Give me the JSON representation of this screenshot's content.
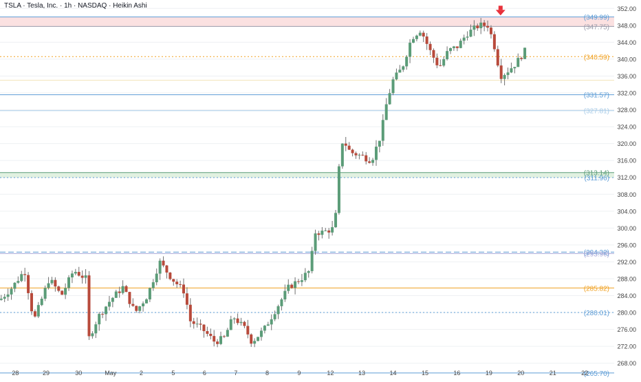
{
  "header": {
    "title": "TSLA · Tesla, Inc. · 1h · NASDAQ · Heikin Ashi"
  },
  "colors": {
    "up": "#5b9c78",
    "down": "#b84a3b",
    "wick": "#6f6f6f",
    "grid": "#eef0f3",
    "axis_text": "#444444",
    "level_blue": "#5b9bd5",
    "level_orange": "#f0a020",
    "arrow": "#e8313b",
    "supply_zone": "#fadcdc",
    "demand_zone": "#dcefdc"
  },
  "chart_data": {
    "type": "candlestick",
    "style": "Heikin Ashi",
    "ylim": [
      266,
      354
    ],
    "xlim": [
      0,
      100
    ],
    "y_ticks": [
      "352.00",
      "348.00",
      "344.00",
      "340.00",
      "336.00",
      "332.00",
      "328.00",
      "324.00",
      "320.00",
      "316.00",
      "312.00",
      "308.00",
      "304.00",
      "300.00",
      "296.00",
      "292.00",
      "288.00",
      "284.00",
      "280.00",
      "276.00",
      "272.00",
      "268.00"
    ],
    "y_tick_values": [
      352,
      348,
      344,
      340,
      336,
      332,
      328,
      324,
      320,
      316,
      312,
      308,
      304,
      300,
      296,
      292,
      288,
      284,
      280,
      276,
      272,
      268
    ],
    "x_ticks": [
      "28",
      "29",
      "30",
      "May",
      "2",
      "5",
      "6",
      "7",
      "8",
      "9",
      "12",
      "13",
      "14",
      "15",
      "16",
      "19",
      "20",
      "21",
      "22"
    ],
    "x_tick_positions": [
      2.5,
      7.5,
      12.8,
      18,
      23,
      28.2,
      33.3,
      38.4,
      43.5,
      48.7,
      53.8,
      58.9,
      64,
      69.2,
      74.4,
      79.6,
      84.8,
      90,
      95.2
    ],
    "zones": [
      {
        "name": "supply",
        "from": 347.75,
        "to": 349.99,
        "color": "#fadcdc"
      },
      {
        "name": "demand",
        "from": 311.96,
        "to": 313.14,
        "color": "#dcefdc"
      }
    ],
    "levels": [
      {
        "value": 349.99,
        "label": "(349.99)",
        "color": "#5b9bd5",
        "style": "solid"
      },
      {
        "value": 347.75,
        "label": "(347.75)",
        "color": "#9a9aaa",
        "style": "solid"
      },
      {
        "value": 340.59,
        "label": "(340.59)",
        "color": "#f0a020",
        "style": "dotted"
      },
      {
        "value": 335.0,
        "label": "",
        "color": "#f3e3b8",
        "style": "solid"
      },
      {
        "value": 331.57,
        "label": "(331.57)",
        "color": "#5b9bd5",
        "style": "solid"
      },
      {
        "value": 327.81,
        "label": "(327.81)",
        "color": "#a8cce8",
        "style": "solid"
      },
      {
        "value": 313.14,
        "label": "(313.14)",
        "color": "#5b9c78",
        "style": "solid"
      },
      {
        "value": 311.96,
        "label": "(311.96)",
        "color": "#5b9bd5",
        "style": "dotted"
      },
      {
        "value": 294.32,
        "label": "(294.32)",
        "color": "#5b9bd5",
        "style": "dashed"
      },
      {
        "value": 293.96,
        "label": "(293.96)",
        "color": "#a8a8d8",
        "style": "solid"
      },
      {
        "value": 285.82,
        "label": "(285.82)",
        "color": "#f0a020",
        "style": "solid"
      },
      {
        "value": 280.01,
        "label": "(280.01)",
        "color": "#5b9bd5",
        "style": "dotted"
      },
      {
        "value": 265.7,
        "label": "(265.70)",
        "color": "#5b9bd5",
        "style": "solid"
      }
    ],
    "arrow_marker": {
      "x": 81.5,
      "y": 351.5
    },
    "key_prices": [
      {
        "x": 0,
        "close": 283
      },
      {
        "x": 2,
        "close": 286
      },
      {
        "x": 4,
        "close": 290
      },
      {
        "x": 5.5,
        "close": 278
      },
      {
        "x": 8,
        "close": 288
      },
      {
        "x": 10,
        "close": 284
      },
      {
        "x": 12,
        "close": 290
      },
      {
        "x": 14,
        "close": 288
      },
      {
        "x": 14.5,
        "close": 274
      },
      {
        "x": 16,
        "close": 279
      },
      {
        "x": 18,
        "close": 283
      },
      {
        "x": 20,
        "close": 286
      },
      {
        "x": 22,
        "close": 280
      },
      {
        "x": 24,
        "close": 284
      },
      {
        "x": 26,
        "close": 292
      },
      {
        "x": 28,
        "close": 288
      },
      {
        "x": 30,
        "close": 285
      },
      {
        "x": 31,
        "close": 278
      },
      {
        "x": 33,
        "close": 276
      },
      {
        "x": 35,
        "close": 273
      },
      {
        "x": 36.5,
        "close": 274
      },
      {
        "x": 38,
        "close": 279
      },
      {
        "x": 40,
        "close": 276
      },
      {
        "x": 41,
        "close": 273
      },
      {
        "x": 43,
        "close": 276
      },
      {
        "x": 45,
        "close": 281
      },
      {
        "x": 47,
        "close": 286
      },
      {
        "x": 49,
        "close": 288
      },
      {
        "x": 50.5,
        "close": 290
      },
      {
        "x": 51.2,
        "close": 299
      },
      {
        "x": 52.5,
        "close": 299
      },
      {
        "x": 54.5,
        "close": 300
      },
      {
        "x": 55.2,
        "close": 314
      },
      {
        "x": 55.8,
        "close": 321
      },
      {
        "x": 57,
        "close": 318
      },
      {
        "x": 59,
        "close": 317
      },
      {
        "x": 60.5,
        "close": 316
      },
      {
        "x": 62,
        "close": 322
      },
      {
        "x": 63,
        "close": 330
      },
      {
        "x": 64,
        "close": 335
      },
      {
        "x": 65.5,
        "close": 338
      },
      {
        "x": 67,
        "close": 345
      },
      {
        "x": 68.5,
        "close": 347
      },
      {
        "x": 70,
        "close": 342
      },
      {
        "x": 71.5,
        "close": 338
      },
      {
        "x": 73,
        "close": 342
      },
      {
        "x": 74.5,
        "close": 343
      },
      {
        "x": 76,
        "close": 346
      },
      {
        "x": 78,
        "close": 348
      },
      {
        "x": 79.5,
        "close": 348
      },
      {
        "x": 80.5,
        "close": 343
      },
      {
        "x": 81.5,
        "close": 336
      },
      {
        "x": 82.5,
        "close": 337
      },
      {
        "x": 84,
        "close": 339
      },
      {
        "x": 85.5,
        "close": 342
      }
    ]
  }
}
